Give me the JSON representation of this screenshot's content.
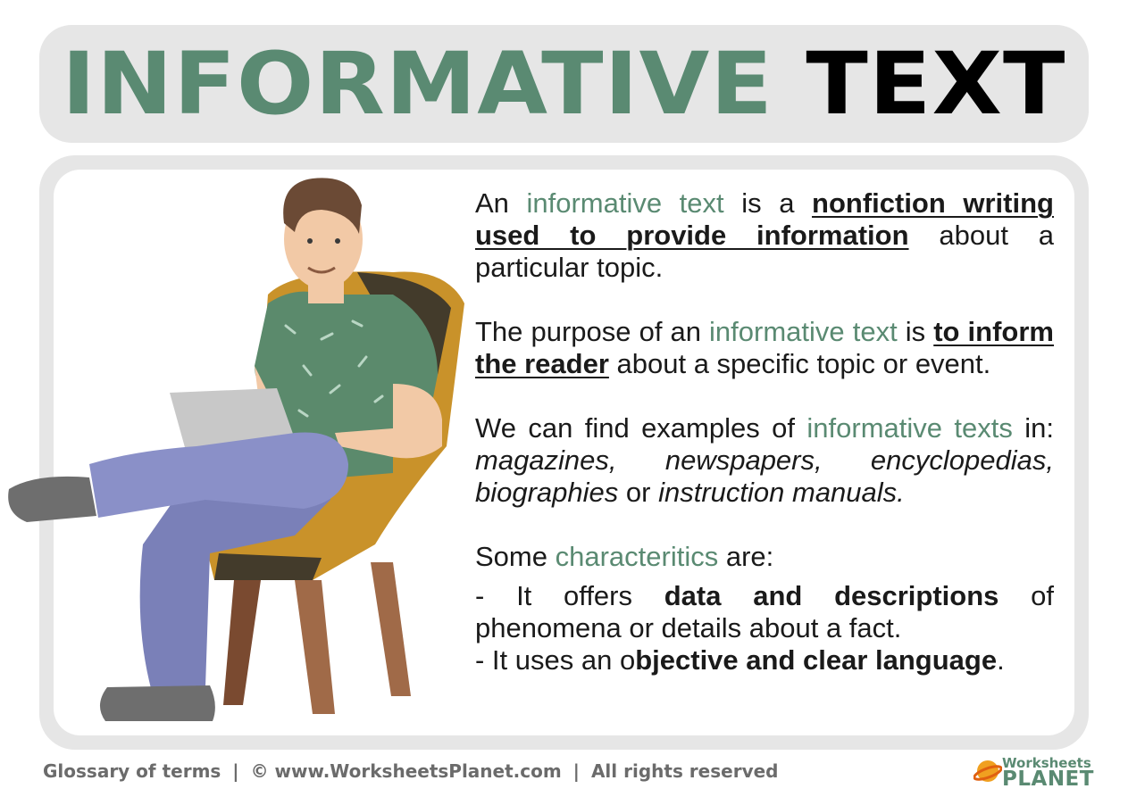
{
  "title": {
    "word1": "INFORMATIVE",
    "word2": "TEXT"
  },
  "paragraph1": {
    "p1": "An ",
    "hl": "informative text",
    "p2": " is a ",
    "ul": "nonfiction writing used  to provide information",
    "p3": " about a particular topic."
  },
  "paragraph2": {
    "p1": "The purpose of an ",
    "hl": "informative text",
    "p2": " is ",
    "ul": "to inform the reader",
    "p3": " about a specific topic or event."
  },
  "paragraph3": {
    "p1": "We can find examples of ",
    "hl": "informative texts",
    "p2": " in: ",
    "i1": "magazines, newspapers, encyclopedias, biographies",
    "p3": " or ",
    "i2": "instruction manuals."
  },
  "paragraph4": {
    "p1": "Some ",
    "hl": "characteritics",
    "p2": " are:"
  },
  "bullet1": {
    "p1": "-  It offers ",
    "b": "data and descriptions",
    "p2": " of phenomena or details about a fact."
  },
  "bullet2": {
    "p1": "-   It uses an o",
    "b": "bjective and clear language",
    "p2": "."
  },
  "footer": {
    "glossary": "Glossary of terms",
    "sep": "|",
    "copyright": "©",
    "site": "www.WorksheetsPlanet.com",
    "rights": "All rights reserved"
  },
  "logo": {
    "line1": "Worksheets",
    "line2": "PLANET"
  },
  "colors": {
    "accent": "#5a8a72",
    "panel": "#e6e6e6",
    "shirt": "#5b8a6c",
    "pants": "#7a80b8",
    "chair": "#c9922a",
    "chair_legs": "#8a5a3c"
  }
}
